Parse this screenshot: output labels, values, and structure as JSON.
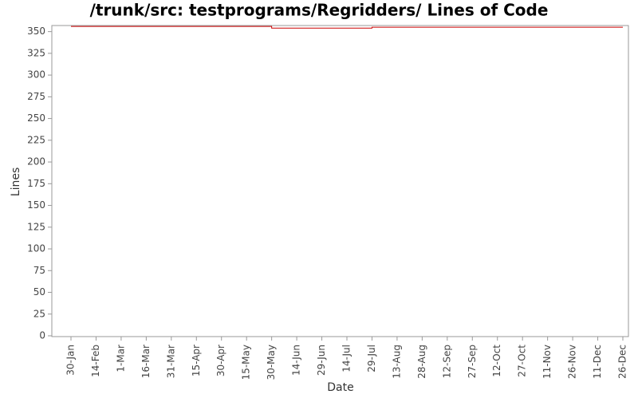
{
  "chart_data": {
    "type": "line",
    "title": "/trunk/src: testprograms/Regridders/ Lines of Code",
    "x_label": "Date",
    "y_label": "Lines",
    "categories": [
      "30-Jan",
      "14-Feb",
      "1-Mar",
      "16-Mar",
      "31-Mar",
      "15-Apr",
      "30-Apr",
      "15-May",
      "30-May",
      "14-Jun",
      "29-Jun",
      "14-Jul",
      "29-Jul",
      "13-Aug",
      "28-Aug",
      "12-Sep",
      "27-Sep",
      "12-Oct",
      "27-Oct",
      "11-Nov",
      "26-Nov",
      "11-Dec",
      "26-Dec"
    ],
    "series": [
      {
        "name": "Lines",
        "color": "#cc0000",
        "x": [
          "30-Jan",
          "30-May",
          "30-May",
          "29-Jul",
          "29-Jul",
          "26-Dec"
        ],
        "values": [
          356,
          356,
          354,
          354,
          355,
          355
        ]
      }
    ],
    "ylim": [
      0,
      357
    ],
    "yticks": [
      0,
      25,
      50,
      75,
      100,
      125,
      150,
      175,
      200,
      225,
      250,
      275,
      300,
      325,
      350
    ]
  }
}
